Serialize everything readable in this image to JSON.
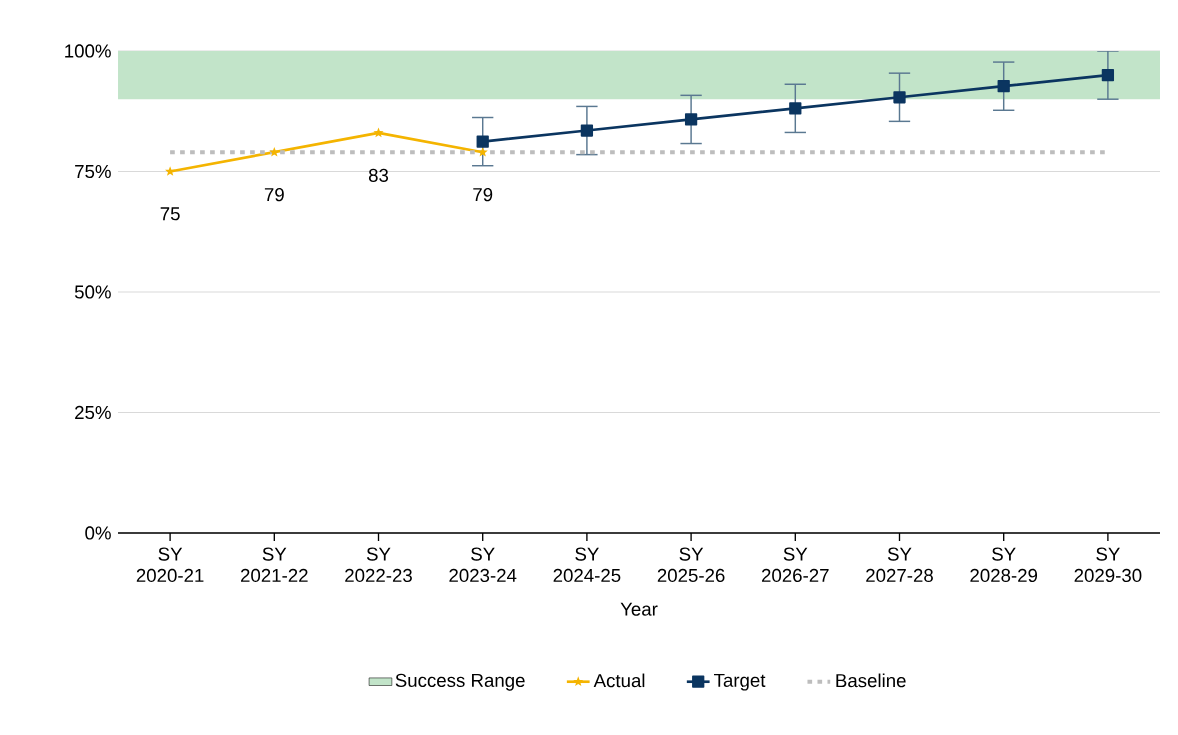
{
  "chart_data": {
    "type": "line",
    "xlabel": "Year",
    "categories": [
      "SY 2020-21",
      "SY 2021-22",
      "SY 2022-23",
      "SY 2023-24",
      "SY 2024-25",
      "SY 2025-26",
      "SY 2026-27",
      "SY 2027-28",
      "SY 2028-29",
      "SY 2029-30"
    ],
    "series": [
      {
        "name": "Actual",
        "color": "#f4b400",
        "marker": "star",
        "values": [
          75,
          79,
          83,
          79,
          null,
          null,
          null,
          null,
          null,
          null
        ],
        "value_labels": [
          "75",
          "79",
          "83",
          "79",
          null,
          null,
          null,
          null,
          null,
          null
        ]
      },
      {
        "name": "Target",
        "color": "#0b3560",
        "marker": "square",
        "values": [
          null,
          null,
          null,
          81.2,
          83.5,
          85.8,
          88.1,
          90.4,
          92.7,
          95
        ],
        "errors": [
          null,
          null,
          null,
          5,
          5,
          5,
          5,
          5,
          5,
          5
        ]
      }
    ],
    "ylim": [
      0,
      100
    ],
    "yticks": [
      {
        "value": 0,
        "label": "0%"
      },
      {
        "value": 25,
        "label": "25%"
      },
      {
        "value": 50,
        "label": "50%"
      },
      {
        "value": 75,
        "label": "75%"
      },
      {
        "value": 100,
        "label": "100%"
      }
    ],
    "bands": [
      {
        "axis": "y",
        "from": 90,
        "to": 100,
        "label": "Success Range",
        "color": "#c2e4c9"
      }
    ],
    "ref_lines": [
      {
        "axis": "y",
        "value": 79,
        "label": "Baseline",
        "color": "#bdbdbd",
        "line_style": "dotted"
      }
    ],
    "grid": "y",
    "legend": "bottom"
  }
}
